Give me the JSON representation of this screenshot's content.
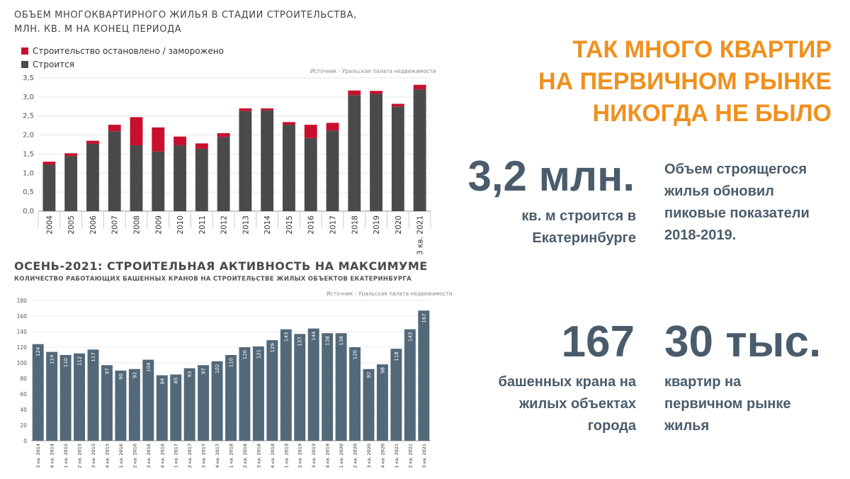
{
  "chart1": {
    "title_line1": "ОБЪЕМ МНОГОКВАРТИРНОГО ЖИЛЬЯ В СТАДИИ СТРОИТЕЛЬСТВА,",
    "title_line2": "МЛН. КВ. М НА КОНЕЦ ПЕРИОДА",
    "source": "Источник - Уральская палата недвижимости"
  },
  "chart2": {
    "title": "ОСЕНЬ-2021: СТРОИТЕЛЬНАЯ АКТИВНОСТЬ НА МАКСИМУМЕ",
    "subtitle": "КОЛИЧЕСТВО РАБОТАЮЩИХ БАШЕННЫХ КРАНОВ НА СТРОИТЕЛЬСТВЕ ЖИЛЫХ ОБЪЕКТОВ ЕКАТЕРИНБУРГА",
    "source": "Источник - Уральская палата недвижимости"
  },
  "headline": {
    "line1": "ТАК МНОГО КВАРТИР",
    "line2": "НА ПЕРВИЧНОМ РЫНКЕ",
    "line3": "НИКОГДА НЕ БЫЛО"
  },
  "stats": {
    "stat1_value": "3,2 млн.",
    "stat1_desc_line1": "кв. м строится в",
    "stat1_desc_line2": "Екатеринбурге",
    "stat2_desc_line1": "Объем строящегося",
    "stat2_desc_line2": "жилья обновил",
    "stat2_desc_line3": "пиковые показатели",
    "stat2_desc_line4": "2018-2019.",
    "stat3_value": "167",
    "stat3_desc_line1": "башенных крана на",
    "stat3_desc_line2": "жилых объектах",
    "stat3_desc_line3": "города",
    "stat4_value": "30 тыс.",
    "stat4_desc_line1": "квартир на",
    "stat4_desc_line2": "первичном рынке",
    "stat4_desc_line3": "жилья"
  },
  "colors": {
    "building": "#4a4a4a",
    "frozen": "#c8102e",
    "cranes": "#53697a",
    "accent": "#f0901e",
    "stat": "#4a5c6b"
  },
  "chart_data": [
    {
      "type": "bar",
      "stacked": true,
      "categories": [
        "2004",
        "2005",
        "2006",
        "2007",
        "2008",
        "2009",
        "2010",
        "2011",
        "2012",
        "2013",
        "2014",
        "2015",
        "2016",
        "2017",
        "2018",
        "2019",
        "2020",
        "3 кв. 2021"
      ],
      "series": [
        {
          "name": "Строится",
          "values": [
            1.22,
            1.45,
            1.77,
            2.1,
            1.73,
            1.57,
            1.73,
            1.64,
            1.95,
            2.63,
            2.65,
            2.27,
            1.92,
            2.12,
            3.05,
            3.08,
            2.75,
            3.2
          ]
        },
        {
          "name": "Строительство остановлено / заморожено",
          "values": [
            0.08,
            0.07,
            0.08,
            0.17,
            0.74,
            0.63,
            0.23,
            0.14,
            0.1,
            0.07,
            0.05,
            0.07,
            0.35,
            0.2,
            0.12,
            0.08,
            0.07,
            0.12
          ]
        }
      ],
      "ylim": [
        0,
        3.5
      ],
      "yticks": [
        "0,0",
        "0,5",
        "1,0",
        "1,5",
        "2,0",
        "2,5",
        "3,0",
        "3,5"
      ],
      "legend": "top-left",
      "grid": true
    },
    {
      "type": "bar",
      "categories": [
        "3 кв. 2014",
        "4 кв. 2014",
        "1 кв. 2015",
        "2 кв. 2015",
        "3 кв. 2015",
        "4 кв. 2015",
        "1 кв. 2016",
        "2 кв. 2016",
        "3 кв. 2016",
        "4 кв. 2016",
        "1 кв. 2017",
        "2 кв. 2017",
        "3 кв. 2017",
        "4 кв. 2017",
        "1 кв. 2018",
        "2 кв. 2018",
        "3 кв. 2018",
        "4 кв. 2018",
        "1 кв. 2019",
        "2 кв. 2019",
        "3 кв. 2019",
        "4 кв. 2019",
        "1 кв. 2020",
        "2 кв. 2020",
        "3 кв. 2020",
        "4 кв. 2020",
        "1 кв. 2021",
        "2 кв. 2021",
        "3 кв. 2021"
      ],
      "values": [
        124,
        114,
        110,
        112,
        117,
        97,
        90,
        92,
        104,
        84,
        85,
        93,
        97,
        102,
        110,
        120,
        121,
        129,
        143,
        137,
        144,
        138,
        138,
        120,
        92,
        98,
        118,
        143,
        167
      ],
      "ylim": [
        0,
        180
      ],
      "yticks": [
        "0",
        "20",
        "40",
        "60",
        "80",
        "100",
        "120",
        "140",
        "160",
        "180"
      ],
      "grid": true
    }
  ]
}
